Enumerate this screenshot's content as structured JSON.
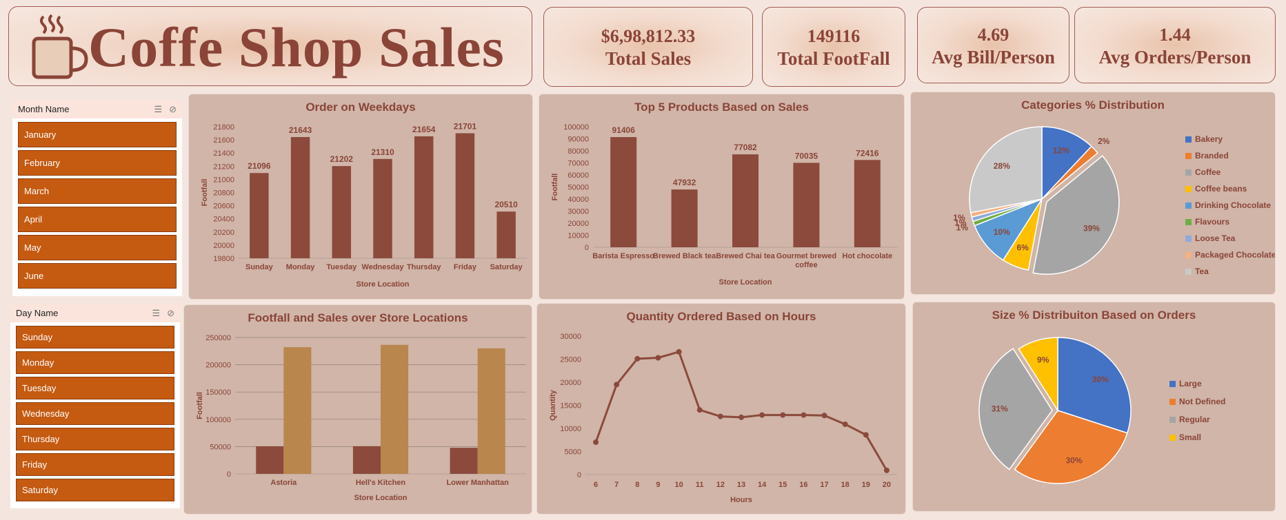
{
  "header": {
    "title": "Coffe Shop Sales",
    "icon": "coffee-cup-icon"
  },
  "kpis": [
    {
      "value": "$6,98,812.33",
      "label": "Total Sales"
    },
    {
      "value": "149116",
      "label": "Total FootFall"
    },
    {
      "value": "4.69",
      "label": "Avg Bill/Person"
    },
    {
      "value": "1.44",
      "label": "Avg Orders/Person"
    }
  ],
  "slicers": {
    "month": {
      "title": "Month Name",
      "items": [
        "January",
        "February",
        "March",
        "April",
        "May",
        "June"
      ]
    },
    "day": {
      "title": "Day Name",
      "items": [
        "Sunday",
        "Monday",
        "Tuesday",
        "Wednesday",
        "Thursday",
        "Friday",
        "Saturday"
      ]
    }
  },
  "colors": {
    "bar": "#8b4a3c",
    "bar2": "#b9864e",
    "text": "#8a4438",
    "panel": "#d0b5a8"
  },
  "chart_data": [
    {
      "id": "weekdays",
      "type": "bar",
      "title": "Order on Weekdays",
      "xlabel": "Store Location",
      "ylabel": "Footfall",
      "categories": [
        "Sunday",
        "Monday",
        "Tuesday",
        "Wednesday",
        "Thursday",
        "Friday",
        "Saturday"
      ],
      "values": [
        21096,
        21643,
        21202,
        21310,
        21654,
        21701,
        20510
      ],
      "ylim": [
        19800,
        21800
      ],
      "yticks": [
        19800,
        20000,
        20200,
        20400,
        20600,
        20800,
        21000,
        21200,
        21400,
        21600,
        21800
      ]
    },
    {
      "id": "products",
      "type": "bar",
      "title": "Top 5 Products Based on Sales",
      "xlabel": "Store Location",
      "ylabel": "Footfall",
      "categories": [
        "Barista Espresso",
        "Brewed Black tea",
        "Brewed Chai tea",
        "Gourmet brewed coffee",
        "Hot chocolate"
      ],
      "values": [
        91406,
        47932,
        77082,
        70035,
        72416
      ],
      "ylim": [
        0,
        100000
      ],
      "yticks": [
        0,
        10000,
        20000,
        30000,
        40000,
        50000,
        60000,
        70000,
        80000,
        90000,
        100000
      ]
    },
    {
      "id": "categories",
      "type": "pie",
      "title": "Categories % Distribution",
      "legend": "right",
      "series": [
        {
          "name": "Bakery",
          "value": 12,
          "label": "12%",
          "color": "#4472c4"
        },
        {
          "name": "Branded",
          "value": 2,
          "label": "2%",
          "color": "#ed7d31"
        },
        {
          "name": "Coffee",
          "value": 39,
          "label": "39%",
          "color": "#a5a5a5"
        },
        {
          "name": "Coffee beans",
          "value": 6,
          "label": "6%",
          "color": "#ffc000"
        },
        {
          "name": "Drinking Chocolate",
          "value": 10,
          "label": "10%",
          "color": "#5b9bd5"
        },
        {
          "name": "Flavours",
          "value": 1,
          "label": "1%",
          "color": "#70ad47"
        },
        {
          "name": "Loose Tea",
          "value": 1,
          "label": "1%",
          "color": "#8faadc"
        },
        {
          "name": "Packaged Chocolate",
          "value": 1,
          "label": "1%",
          "color": "#f4b183"
        },
        {
          "name": "Tea",
          "value": 28,
          "label": "28%",
          "color": "#c9c9c9"
        }
      ]
    },
    {
      "id": "locations",
      "type": "bar",
      "title": "Footfall and Sales over Store Locations",
      "xlabel": "Store Location",
      "ylabel": "Footfall",
      "categories": [
        "Astoria",
        "Hell's Kitchen",
        "Lower Manhattan"
      ],
      "series": [
        {
          "values": [
            50599,
            50735,
            47782
          ],
          "color": "#8b4a3c"
        },
        {
          "values": [
            232244,
            236511,
            230057
          ],
          "color": "#b9864e"
        }
      ],
      "ylim": [
        0,
        250000
      ],
      "yticks": [
        0,
        50000,
        100000,
        150000,
        200000,
        250000
      ],
      "grid": true
    },
    {
      "id": "hours",
      "type": "line",
      "title": "Quantity Ordered Based on Hours",
      "xlabel": "Hours",
      "ylabel": "Quantity",
      "x": [
        6,
        7,
        8,
        9,
        10,
        11,
        12,
        13,
        14,
        15,
        16,
        17,
        18,
        19,
        20
      ],
      "values": [
        7000,
        19500,
        25100,
        25300,
        26600,
        14000,
        12600,
        12400,
        12900,
        12900,
        12900,
        12800,
        10900,
        8600,
        900
      ],
      "ylim": [
        0,
        30000
      ],
      "yticks": [
        0,
        5000,
        10000,
        15000,
        20000,
        25000,
        30000
      ]
    },
    {
      "id": "sizes",
      "type": "pie",
      "title": "Size % Distribuiton Based on Orders",
      "legend": "right",
      "series": [
        {
          "name": "Large",
          "value": 30,
          "label": "30%",
          "color": "#4472c4"
        },
        {
          "name": "Not Defined",
          "value": 30,
          "label": "30%",
          "color": "#ed7d31"
        },
        {
          "name": "Regular",
          "value": 31,
          "label": "31%",
          "color": "#a5a5a5"
        },
        {
          "name": "Small",
          "value": 9,
          "label": "9%",
          "color": "#ffc000"
        }
      ]
    }
  ]
}
